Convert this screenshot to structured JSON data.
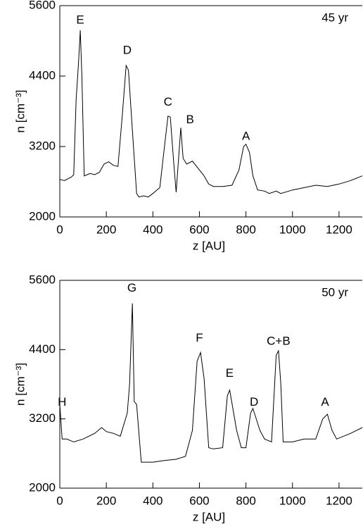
{
  "chart_data": [
    {
      "type": "line",
      "xlabel": "z [AU]",
      "ylabel": "n [cm⁻³]",
      "label": "45 yr",
      "xlim": [
        0,
        1300
      ],
      "ylim": [
        2000,
        5600
      ],
      "xticks": [
        0,
        200,
        400,
        600,
        800,
        1000,
        1200
      ],
      "yticks": [
        2000,
        3200,
        4400,
        5600
      ],
      "series": [
        {
          "name": null,
          "color": "#000000",
          "x": [
            0,
            20,
            50,
            60,
            70,
            80,
            88,
            95,
            105,
            130,
            150,
            170,
            190,
            210,
            230,
            250,
            270,
            285,
            295,
            310,
            330,
            340,
            360,
            380,
            400,
            430,
            450,
            465,
            475,
            490,
            500,
            520,
            530,
            545,
            570,
            600,
            620,
            640,
            660,
            700,
            740,
            770,
            790,
            800,
            815,
            830,
            850,
            880,
            900,
            930,
            950,
            1000,
            1100,
            1150,
            1200,
            1250,
            1300
          ],
          "values": [
            2640,
            2620,
            2680,
            2720,
            4000,
            4600,
            5180,
            4400,
            2700,
            2740,
            2720,
            2760,
            2900,
            2940,
            2880,
            2860,
            3800,
            4580,
            4500,
            3600,
            2400,
            2340,
            2360,
            2340,
            2400,
            2500,
            3200,
            3720,
            3700,
            2900,
            2420,
            3520,
            3000,
            2900,
            2950,
            2800,
            2700,
            2560,
            2520,
            2520,
            2540,
            2800,
            3200,
            3240,
            3100,
            2700,
            2460,
            2440,
            2400,
            2440,
            2400,
            2460,
            2540,
            2520,
            2560,
            2620,
            2700
          ]
        }
      ],
      "annotations": [
        {
          "text": "E",
          "x": 88,
          "y": 5350
        },
        {
          "text": "D",
          "x": 290,
          "y": 4830
        },
        {
          "text": "C",
          "x": 465,
          "y": 3950
        },
        {
          "text": "B",
          "x": 560,
          "y": 3650
        },
        {
          "text": "A",
          "x": 800,
          "y": 3370
        }
      ]
    },
    {
      "type": "line",
      "xlabel": "z [AU]",
      "ylabel": "n [cm⁻³]",
      "label": "50 yr",
      "xlim": [
        0,
        1300
      ],
      "ylim": [
        2000,
        5600
      ],
      "xticks": [
        0,
        200,
        400,
        600,
        800,
        1000,
        1200
      ],
      "yticks": [
        2000,
        3200,
        4400,
        5600
      ],
      "series": [
        {
          "name": null,
          "color": "#000000",
          "x": [
            0,
            10,
            30,
            60,
            100,
            150,
            180,
            200,
            230,
            260,
            290,
            300,
            312,
            320,
            330,
            350,
            400,
            450,
            500,
            540,
            570,
            590,
            605,
            620,
            640,
            660,
            700,
            720,
            730,
            760,
            780,
            800,
            820,
            830,
            860,
            880,
            910,
            930,
            940,
            950,
            960,
            1000,
            1050,
            1100,
            1130,
            1150,
            1170,
            1190,
            1250,
            1300
          ],
          "values": [
            3450,
            2850,
            2850,
            2800,
            2850,
            2950,
            3050,
            2980,
            2950,
            2900,
            3300,
            3800,
            5200,
            3500,
            3450,
            2450,
            2450,
            2480,
            2500,
            2550,
            3000,
            4200,
            4350,
            3900,
            2700,
            2680,
            2700,
            3600,
            3700,
            3000,
            2700,
            2700,
            3300,
            3380,
            3000,
            2850,
            2800,
            4300,
            4380,
            3800,
            2800,
            2800,
            2850,
            2850,
            3200,
            3280,
            3000,
            2850,
            2950,
            3050
          ]
        }
      ],
      "annotations": [
        {
          "text": "H",
          "x": 10,
          "y": 3480
        },
        {
          "text": "G",
          "x": 310,
          "y": 5460
        },
        {
          "text": "F",
          "x": 600,
          "y": 4590
        },
        {
          "text": "E",
          "x": 730,
          "y": 3980
        },
        {
          "text": "D",
          "x": 835,
          "y": 3480
        },
        {
          "text": "C+B",
          "x": 940,
          "y": 4540
        },
        {
          "text": "A",
          "x": 1140,
          "y": 3480
        }
      ]
    }
  ]
}
